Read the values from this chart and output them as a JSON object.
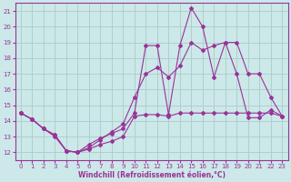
{
  "xlabel": "Windchill (Refroidissement éolien,°C)",
  "bg_color": "#cce8e8",
  "grid_color": "#aacccc",
  "line_color": "#993399",
  "xlim": [
    -0.5,
    23.5
  ],
  "ylim": [
    11.5,
    21.5
  ],
  "yticks": [
    12,
    13,
    14,
    15,
    16,
    17,
    18,
    19,
    20,
    21
  ],
  "xticks": [
    0,
    1,
    2,
    3,
    4,
    5,
    6,
    7,
    8,
    9,
    10,
    11,
    12,
    13,
    14,
    15,
    16,
    17,
    18,
    19,
    20,
    21,
    22,
    23
  ],
  "line1_x": [
    0,
    1,
    2,
    3,
    4,
    5,
    6,
    7,
    8,
    9,
    10,
    11,
    12,
    13,
    14,
    15,
    16,
    17,
    18,
    19,
    20,
    21,
    22,
    23
  ],
  "line1_y": [
    14.5,
    14.1,
    13.5,
    13.0,
    12.1,
    12.0,
    12.2,
    12.5,
    12.7,
    13.0,
    14.3,
    14.4,
    14.4,
    14.3,
    14.5,
    14.5,
    14.5,
    14.5,
    14.5,
    14.5,
    14.5,
    14.5,
    14.5,
    14.3
  ],
  "line2_x": [
    0,
    1,
    2,
    3,
    4,
    5,
    6,
    7,
    8,
    9,
    10,
    11,
    12,
    13,
    14,
    15,
    16,
    17,
    18,
    19,
    20,
    21,
    22,
    23
  ],
  "line2_y": [
    14.5,
    14.1,
    13.5,
    13.1,
    12.1,
    12.0,
    12.5,
    12.9,
    13.2,
    13.5,
    14.5,
    18.8,
    18.8,
    14.4,
    18.8,
    21.2,
    20.0,
    16.8,
    19.0,
    17.0,
    14.2,
    14.2,
    14.7,
    14.3
  ],
  "line3_x": [
    0,
    1,
    2,
    3,
    4,
    5,
    6,
    7,
    8,
    9,
    10,
    11,
    12,
    13,
    14,
    15,
    16,
    17,
    18,
    19,
    20,
    21,
    22,
    23
  ],
  "line3_y": [
    14.5,
    14.1,
    13.5,
    13.1,
    12.1,
    12.0,
    12.3,
    12.8,
    13.3,
    13.8,
    15.5,
    17.0,
    17.4,
    16.8,
    17.5,
    19.0,
    18.5,
    18.8,
    19.0,
    19.0,
    17.0,
    17.0,
    15.5,
    14.3
  ]
}
